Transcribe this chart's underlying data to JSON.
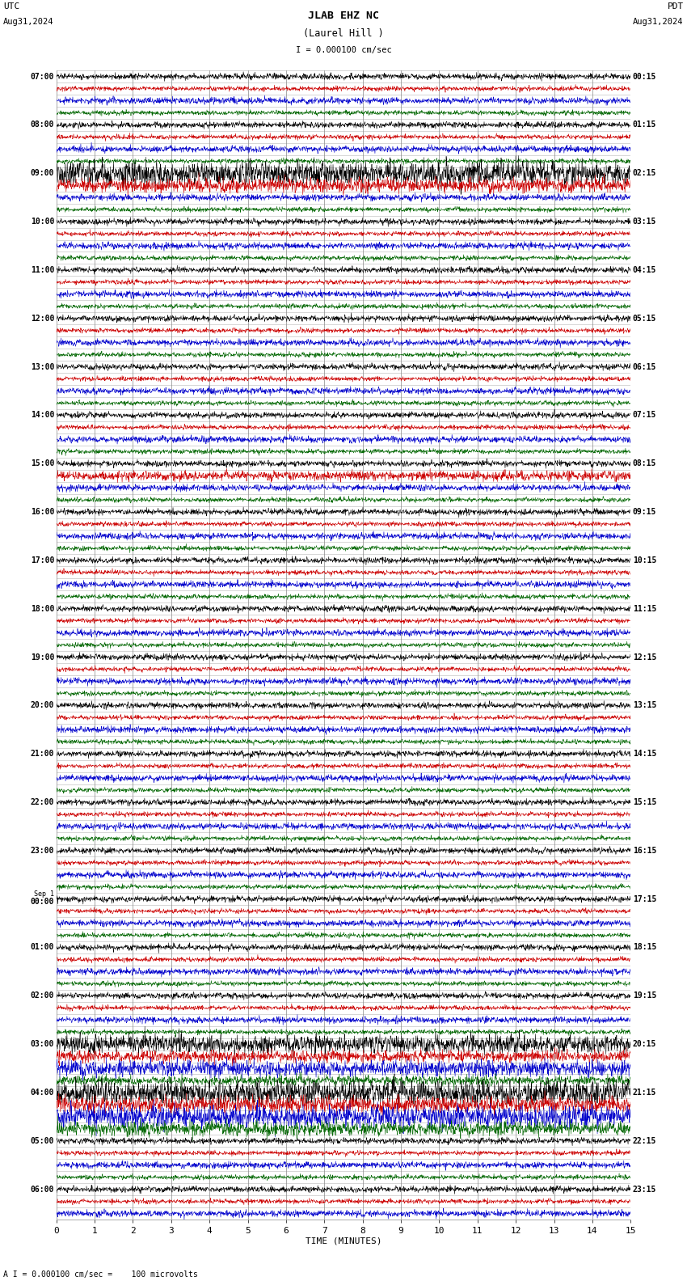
{
  "title_line1": "JLAB EHZ NC",
  "title_line2": "(Laurel Hill )",
  "scale_label": "I = 0.000100 cm/sec",
  "utc_label1": "UTC",
  "utc_label2": "Aug31,2024",
  "pdt_label1": "PDT",
  "pdt_label2": "Aug31,2024",
  "bottom_label": "A I = 0.000100 cm/sec =    100 microvolts",
  "xlabel": "TIME (MINUTES)",
  "left_times": [
    "07:00",
    "",
    "",
    "",
    "08:00",
    "",
    "",
    "",
    "09:00",
    "",
    "",
    "",
    "10:00",
    "",
    "",
    "",
    "11:00",
    "",
    "",
    "",
    "12:00",
    "",
    "",
    "",
    "13:00",
    "",
    "",
    "",
    "14:00",
    "",
    "",
    "",
    "15:00",
    "",
    "",
    "",
    "16:00",
    "",
    "",
    "",
    "17:00",
    "",
    "",
    "",
    "18:00",
    "",
    "",
    "",
    "19:00",
    "",
    "",
    "",
    "20:00",
    "",
    "",
    "",
    "21:00",
    "",
    "",
    "",
    "22:00",
    "",
    "",
    "",
    "23:00",
    "",
    "",
    "",
    "Sep 1\n00:00",
    "",
    "",
    "",
    "01:00",
    "",
    "",
    "",
    "02:00",
    "",
    "",
    "",
    "03:00",
    "",
    "",
    "",
    "04:00",
    "",
    "",
    "",
    "05:00",
    "",
    "",
    "",
    "06:00",
    "",
    ""
  ],
  "right_times": [
    "00:15",
    "",
    "",
    "",
    "01:15",
    "",
    "",
    "",
    "02:15",
    "",
    "",
    "",
    "03:15",
    "",
    "",
    "",
    "04:15",
    "",
    "",
    "",
    "05:15",
    "",
    "",
    "",
    "06:15",
    "",
    "",
    "",
    "07:15",
    "",
    "",
    "",
    "08:15",
    "",
    "",
    "",
    "09:15",
    "",
    "",
    "",
    "10:15",
    "",
    "",
    "",
    "11:15",
    "",
    "",
    "",
    "12:15",
    "",
    "",
    "",
    "13:15",
    "",
    "",
    "",
    "14:15",
    "",
    "",
    "",
    "15:15",
    "",
    "",
    "",
    "16:15",
    "",
    "",
    "",
    "17:15",
    "",
    "",
    "",
    "18:15",
    "",
    "",
    "",
    "19:15",
    "",
    "",
    "",
    "20:15",
    "",
    "",
    "",
    "21:15",
    "",
    "",
    "",
    "22:15",
    "",
    "",
    "",
    "23:15",
    "",
    ""
  ],
  "n_rows": 23,
  "n_channels": 4,
  "channel_colors": [
    "#000000",
    "#cc0000",
    "#0000cc",
    "#006600"
  ],
  "noise_amplitudes": [
    0.28,
    0.22,
    0.3,
    0.22
  ],
  "background_color": "#ffffff",
  "grid_color": "#888888",
  "x_min": 0,
  "x_max": 15,
  "x_ticks": [
    0,
    1,
    2,
    3,
    4,
    5,
    6,
    7,
    8,
    9,
    10,
    11,
    12,
    13,
    14,
    15
  ],
  "figsize": [
    8.5,
    15.84
  ],
  "dpi": 100
}
